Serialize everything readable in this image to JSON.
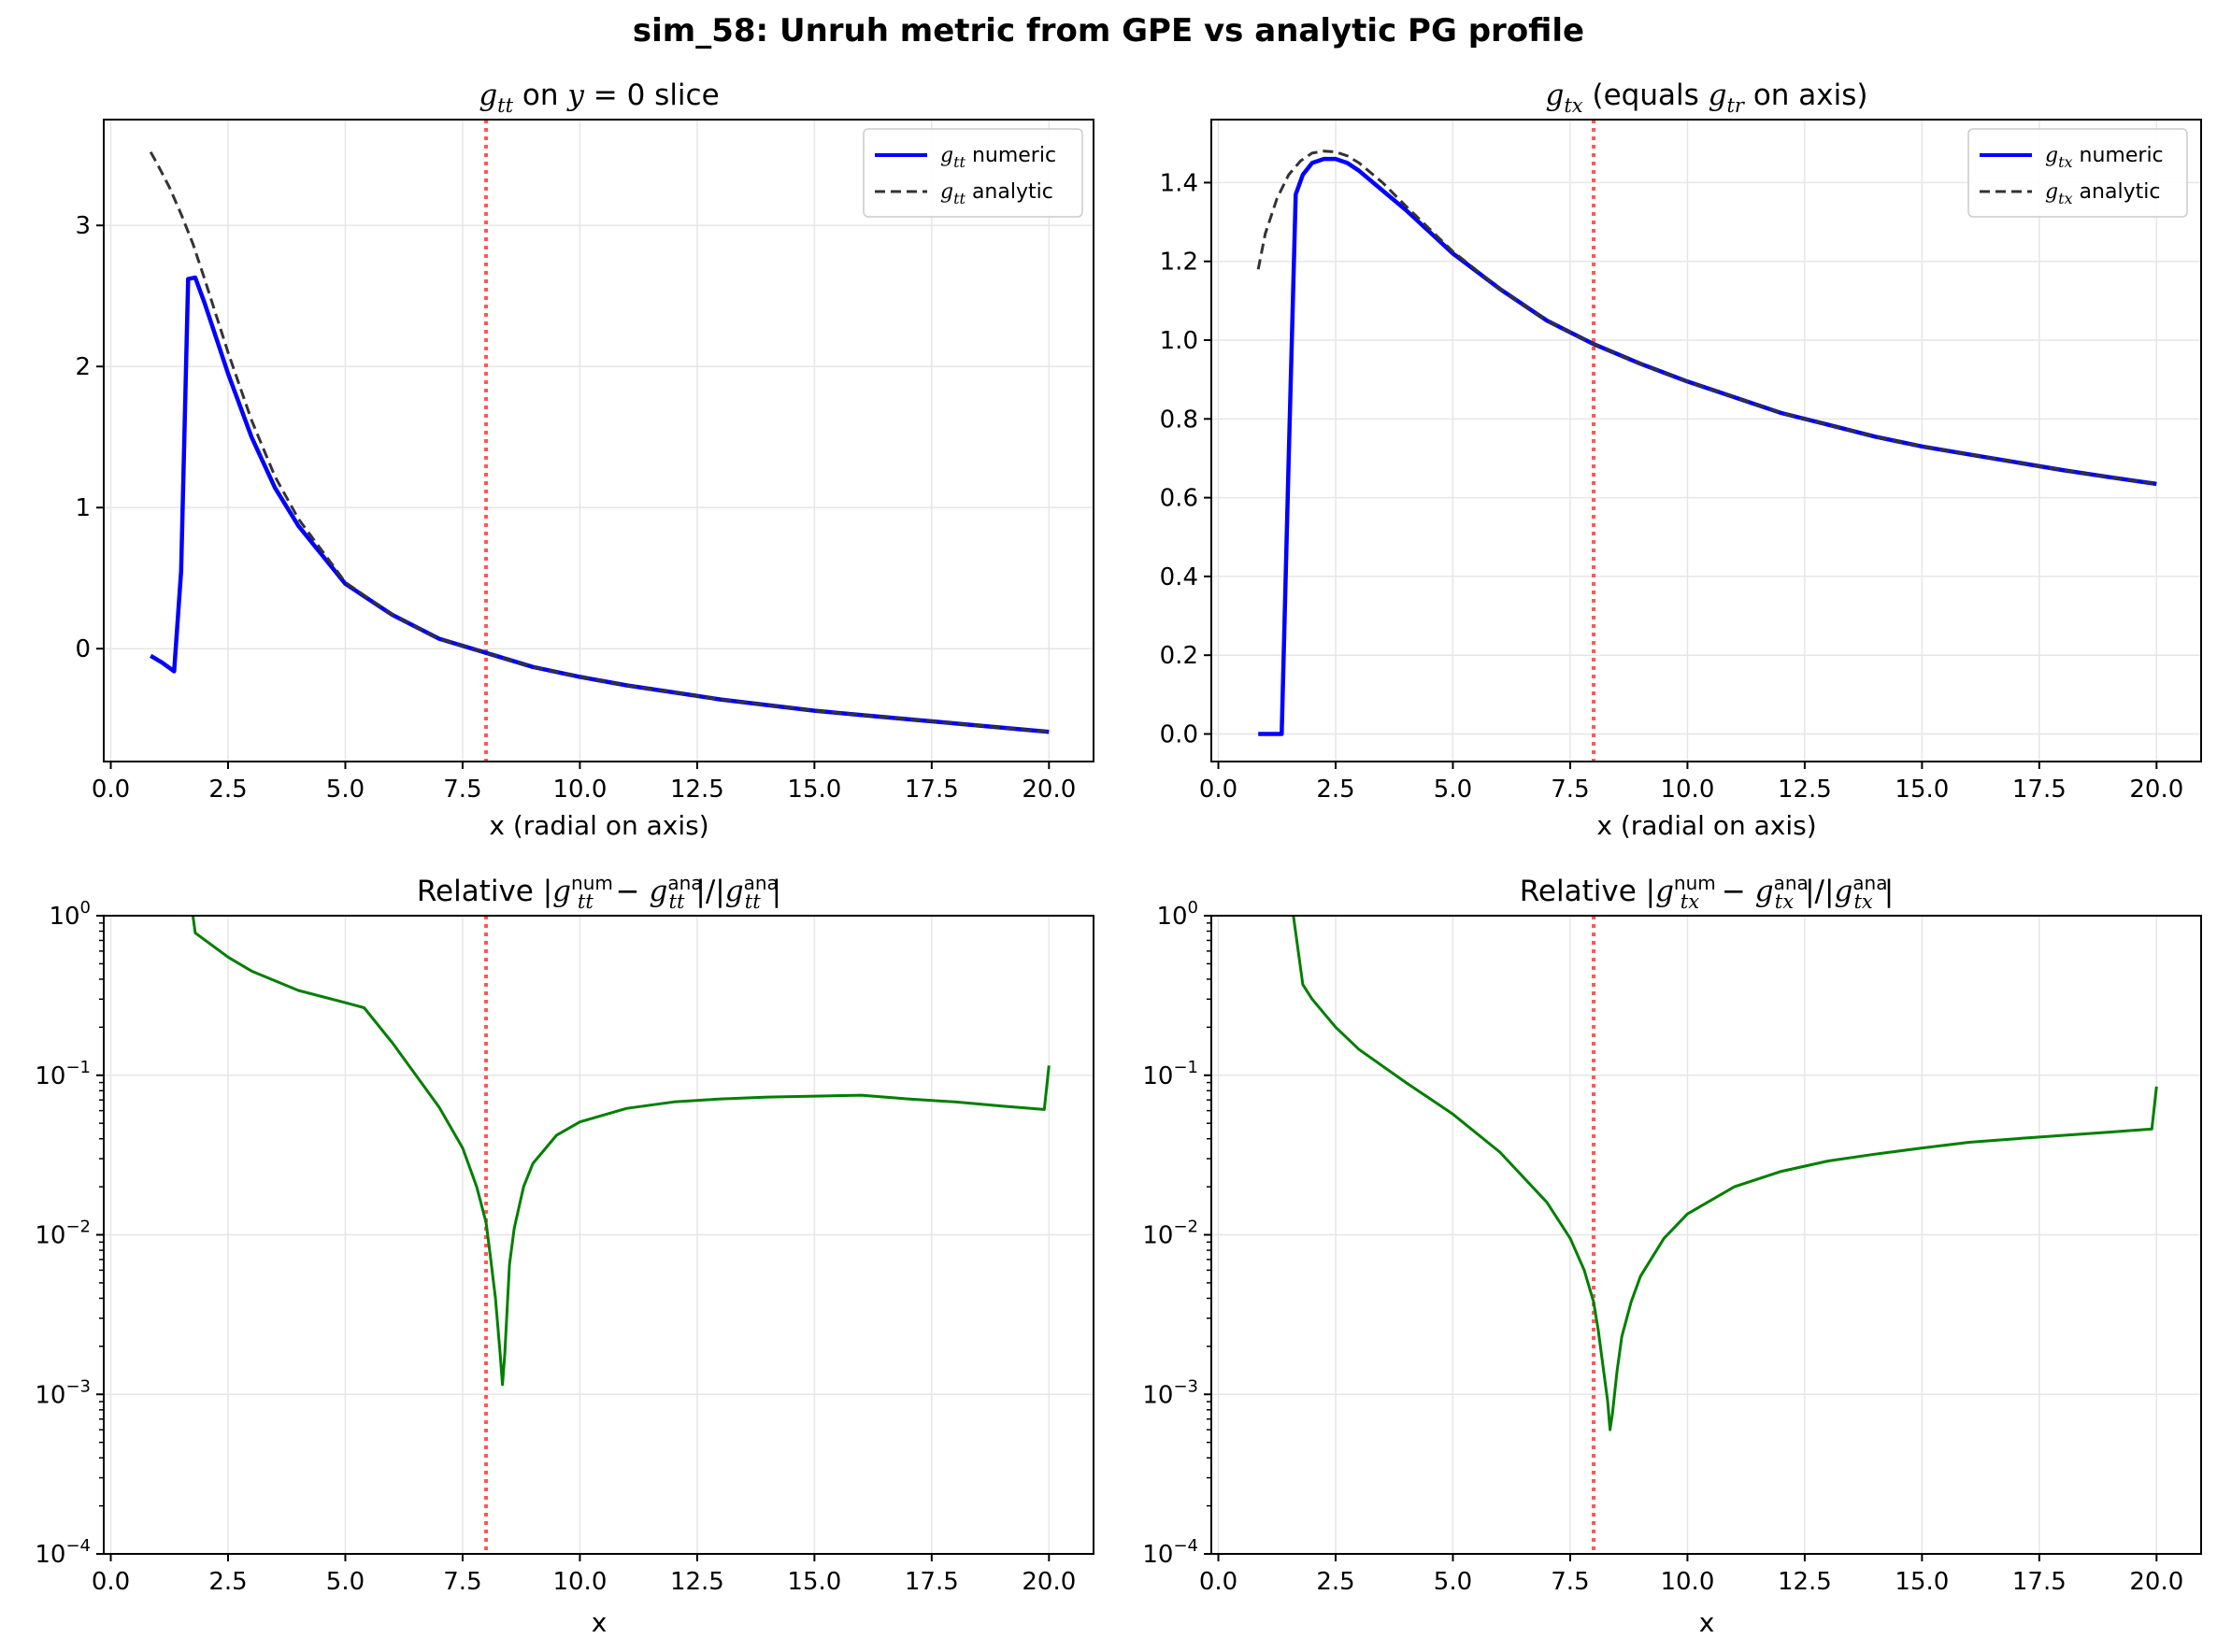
{
  "figure": {
    "suptitle": "sim_58: Unruh metric from GPE vs analytic PG profile",
    "horizon_x": 8.0,
    "colors": {
      "numeric": "#0000ff",
      "analytic": "#333333",
      "error": "#007f00",
      "horizon": "#ff4d4d",
      "grid": "#e6e6e6"
    }
  },
  "legend_words": {
    "numeric": "numeric",
    "analytic": "analytic"
  },
  "panels": [
    {
      "title_parts": {
        "g": "g",
        "sub": "tt",
        "middle": " on ",
        "y": "y",
        "rest": " = 0 slice"
      },
      "xlabel": "x (radial on axis)",
      "legend_sym": {
        "g": "g",
        "sub": "tt"
      },
      "legend_position": "upper right"
    },
    {
      "title_parts": {
        "g": "g",
        "sub": "tx",
        "middle": " (equals ",
        "g2": "g",
        "sub2": "tr",
        "rest": " on axis)"
      },
      "xlabel": "x (radial on axis)",
      "legend_sym": {
        "g": "g",
        "sub": "tx"
      },
      "legend_position": "upper right"
    },
    {
      "title_parts": {
        "pre": "Relative |",
        "g": "g",
        "sub": "tt",
        "sup_num": "num",
        "minus": " − ",
        "sup_ana": "ana",
        "sep": "|/|",
        "end": "|"
      },
      "xlabel": "x"
    },
    {
      "title_parts": {
        "pre": "Relative |",
        "g": "g",
        "sub": "tx",
        "sup_num": "num",
        "minus": " − ",
        "sup_ana": "ana",
        "sep": "|/|",
        "end": "|"
      },
      "xlabel": "x"
    }
  ],
  "chart_data": [
    {
      "type": "line",
      "title": "g_tt on y = 0 slice",
      "xlabel": "x (radial on axis)",
      "ylabel": "",
      "xlim": [
        -0.15,
        20.95
      ],
      "ylim": [
        -0.8,
        3.75
      ],
      "xticks": [
        0.0,
        2.5,
        5.0,
        7.5,
        10.0,
        12.5,
        15.0,
        17.5,
        20.0
      ],
      "xticklabels": [
        "0.0",
        "2.5",
        "5.0",
        "7.5",
        "10.0",
        "12.5",
        "15.0",
        "17.5",
        "20.0"
      ],
      "yticks": [
        0,
        1,
        2,
        3
      ],
      "yticklabels": [
        "0",
        "1",
        "2",
        "3"
      ],
      "yscale": "linear",
      "grid": true,
      "legend": "upper right",
      "series": [
        {
          "name": "g_tt numeric",
          "style": "solid",
          "x": [
            0.85,
            1.1,
            1.35,
            1.5,
            1.65,
            1.8,
            2.0,
            2.5,
            3.0,
            3.5,
            4.0,
            5.0,
            6.0,
            7.0,
            8.0,
            9.0,
            10.0,
            11.0,
            12.0,
            13.0,
            14.0,
            15.0,
            16.0,
            17.0,
            18.0,
            19.0,
            20.0
          ],
          "y": [
            -0.05,
            -0.1,
            -0.16,
            0.55,
            2.62,
            2.63,
            2.45,
            1.95,
            1.5,
            1.14,
            0.87,
            0.46,
            0.24,
            0.07,
            -0.03,
            -0.13,
            -0.2,
            -0.26,
            -0.31,
            -0.36,
            -0.4,
            -0.44,
            -0.47,
            -0.5,
            -0.53,
            -0.56,
            -0.59
          ]
        },
        {
          "name": "g_tt analytic",
          "style": "dashed",
          "x": [
            0.85,
            1.0,
            1.25,
            1.5,
            1.75,
            2.0,
            2.5,
            3.0,
            3.5,
            4.0,
            5.0,
            6.0,
            7.0,
            8.0,
            9.0,
            10.0,
            11.0,
            12.0,
            13.0,
            14.0,
            15.0,
            16.0,
            17.0,
            18.0,
            19.0,
            20.0
          ],
          "y": [
            3.52,
            3.43,
            3.27,
            3.08,
            2.87,
            2.62,
            2.1,
            1.62,
            1.22,
            0.92,
            0.47,
            0.24,
            0.07,
            -0.03,
            -0.13,
            -0.2,
            -0.26,
            -0.31,
            -0.36,
            -0.4,
            -0.44,
            -0.47,
            -0.5,
            -0.53,
            -0.56,
            -0.59
          ]
        }
      ]
    },
    {
      "type": "line",
      "title": "g_tx (equals g_tr on axis)",
      "xlabel": "x (radial on axis)",
      "ylabel": "",
      "xlim": [
        -0.15,
        20.95
      ],
      "ylim": [
        -0.07,
        1.56
      ],
      "xticks": [
        0.0,
        2.5,
        5.0,
        7.5,
        10.0,
        12.5,
        15.0,
        17.5,
        20.0
      ],
      "xticklabels": [
        "0.0",
        "2.5",
        "5.0",
        "7.5",
        "10.0",
        "12.5",
        "15.0",
        "17.5",
        "20.0"
      ],
      "yticks": [
        0.0,
        0.2,
        0.4,
        0.6,
        0.8,
        1.0,
        1.2,
        1.4
      ],
      "yticklabels": [
        "0.0",
        "0.2",
        "0.4",
        "0.6",
        "0.8",
        "1.0",
        "1.2",
        "1.4"
      ],
      "yscale": "linear",
      "grid": true,
      "legend": "upper right",
      "series": [
        {
          "name": "g_tx numeric",
          "style": "solid",
          "x": [
            0.85,
            1.35,
            1.5,
            1.65,
            1.8,
            2.0,
            2.25,
            2.5,
            2.75,
            3.0,
            3.5,
            4.0,
            5.0,
            6.0,
            7.0,
            8.0,
            9.0,
            10.0,
            11.0,
            12.0,
            13.0,
            14.0,
            15.0,
            16.0,
            17.0,
            18.0,
            19.0,
            20.0
          ],
          "y": [
            0.0,
            0.0,
            0.7,
            1.37,
            1.42,
            1.45,
            1.46,
            1.46,
            1.45,
            1.43,
            1.38,
            1.33,
            1.22,
            1.13,
            1.05,
            0.99,
            0.94,
            0.895,
            0.855,
            0.815,
            0.785,
            0.755,
            0.73,
            0.71,
            0.69,
            0.67,
            0.652,
            0.635
          ]
        },
        {
          "name": "g_tx analytic",
          "style": "dashed",
          "x": [
            0.85,
            1.0,
            1.25,
            1.5,
            1.75,
            2.0,
            2.25,
            2.5,
            2.75,
            3.0,
            3.5,
            4.0,
            5.0,
            6.0,
            7.0,
            8.0,
            9.0,
            10.0,
            11.0,
            12.0,
            13.0,
            14.0,
            15.0,
            16.0,
            17.0,
            18.0,
            19.0,
            20.0
          ],
          "y": [
            1.18,
            1.27,
            1.36,
            1.42,
            1.455,
            1.475,
            1.48,
            1.478,
            1.468,
            1.45,
            1.4,
            1.34,
            1.225,
            1.13,
            1.05,
            0.99,
            0.94,
            0.895,
            0.855,
            0.815,
            0.785,
            0.755,
            0.73,
            0.71,
            0.69,
            0.67,
            0.652,
            0.635
          ]
        }
      ]
    },
    {
      "type": "line",
      "title": "Relative |g_tt^num - g_tt^ana|/|g_tt^ana|",
      "xlabel": "x",
      "ylabel": "",
      "xlim": [
        -0.15,
        20.95
      ],
      "ylim": [
        0.0001,
        1
      ],
      "xticks": [
        0.0,
        2.5,
        5.0,
        7.5,
        10.0,
        12.5,
        15.0,
        17.5,
        20.0
      ],
      "xticklabels": [
        "0.0",
        "2.5",
        "5.0",
        "7.5",
        "10.0",
        "12.5",
        "15.0",
        "17.5",
        "20.0"
      ],
      "yticks": [
        0.0001,
        0.001,
        0.01,
        0.1,
        1
      ],
      "ytick_exponents": [
        "−4",
        "−3",
        "−2",
        "−1",
        "0"
      ],
      "yscale": "log",
      "grid": true,
      "series": [
        {
          "name": "",
          "style": "solid",
          "x": [
            1.75,
            1.8,
            2.5,
            3.0,
            4.0,
            5.0,
            5.4,
            6.0,
            7.0,
            7.5,
            7.8,
            8.0,
            8.1,
            8.2,
            8.3,
            8.35,
            8.4,
            8.5,
            8.6,
            8.8,
            9.0,
            9.5,
            10.0,
            11.0,
            12.0,
            13.0,
            14.0,
            15.0,
            16.0,
            17.0,
            18.0,
            19.0,
            19.9,
            20.0
          ],
          "y": [
            1.0,
            0.78,
            0.55,
            0.45,
            0.34,
            0.285,
            0.265,
            0.16,
            0.063,
            0.035,
            0.02,
            0.012,
            0.007,
            0.004,
            0.0018,
            0.00115,
            0.0018,
            0.0065,
            0.011,
            0.02,
            0.028,
            0.042,
            0.051,
            0.062,
            0.068,
            0.071,
            0.073,
            0.074,
            0.075,
            0.071,
            0.068,
            0.064,
            0.061,
            0.115
          ]
        }
      ]
    },
    {
      "type": "line",
      "title": "Relative |g_tx^num - g_tx^ana|/|g_tx^ana|",
      "xlabel": "x",
      "ylabel": "",
      "xlim": [
        -0.15,
        20.95
      ],
      "ylim": [
        0.0001,
        1
      ],
      "xticks": [
        0.0,
        2.5,
        5.0,
        7.5,
        10.0,
        12.5,
        15.0,
        17.5,
        20.0
      ],
      "xticklabels": [
        "0.0",
        "2.5",
        "5.0",
        "7.5",
        "10.0",
        "12.5",
        "15.0",
        "17.5",
        "20.0"
      ],
      "yticks": [
        0.0001,
        0.001,
        0.01,
        0.1,
        1
      ],
      "ytick_exponents": [
        "−4",
        "−3",
        "−2",
        "−1",
        "0"
      ],
      "yscale": "log",
      "grid": true,
      "series": [
        {
          "name": "",
          "style": "solid",
          "x": [
            1.6,
            1.8,
            2.0,
            2.5,
            3.0,
            4.0,
            5.0,
            6.0,
            7.0,
            7.5,
            7.8,
            8.0,
            8.1,
            8.2,
            8.3,
            8.35,
            8.4,
            8.5,
            8.6,
            8.8,
            9.0,
            9.5,
            10.0,
            11.0,
            12.0,
            13.0,
            14.0,
            15.0,
            16.0,
            17.0,
            18.0,
            19.0,
            19.9,
            20.0
          ],
          "y": [
            1.0,
            0.37,
            0.3,
            0.2,
            0.145,
            0.09,
            0.057,
            0.033,
            0.016,
            0.0095,
            0.006,
            0.0038,
            0.0025,
            0.0015,
            0.0009,
            0.0006,
            0.00075,
            0.0014,
            0.0023,
            0.0038,
            0.0055,
            0.0095,
            0.0135,
            0.02,
            0.025,
            0.029,
            0.032,
            0.035,
            0.038,
            0.04,
            0.042,
            0.044,
            0.046,
            0.085
          ]
        }
      ]
    }
  ]
}
